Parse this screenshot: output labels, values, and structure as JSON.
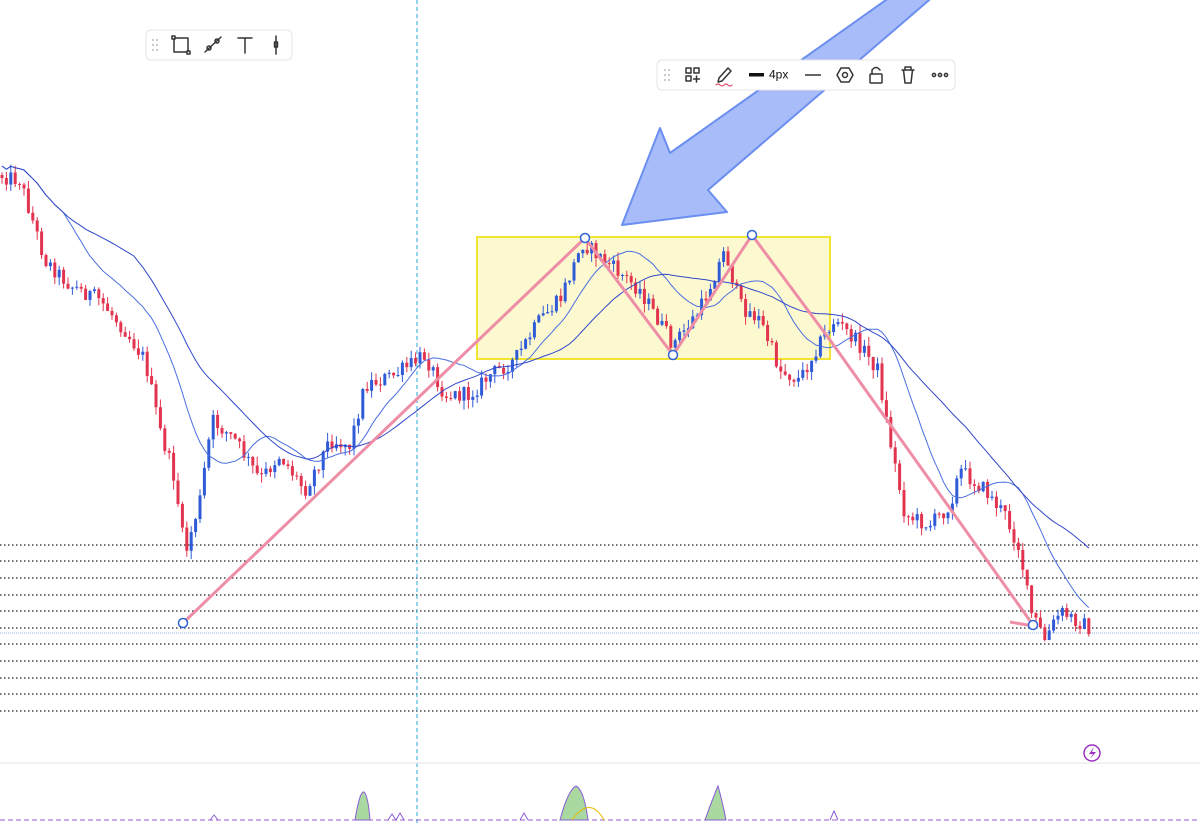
{
  "toolbar": {
    "stroke_width": "4px"
  }
}
